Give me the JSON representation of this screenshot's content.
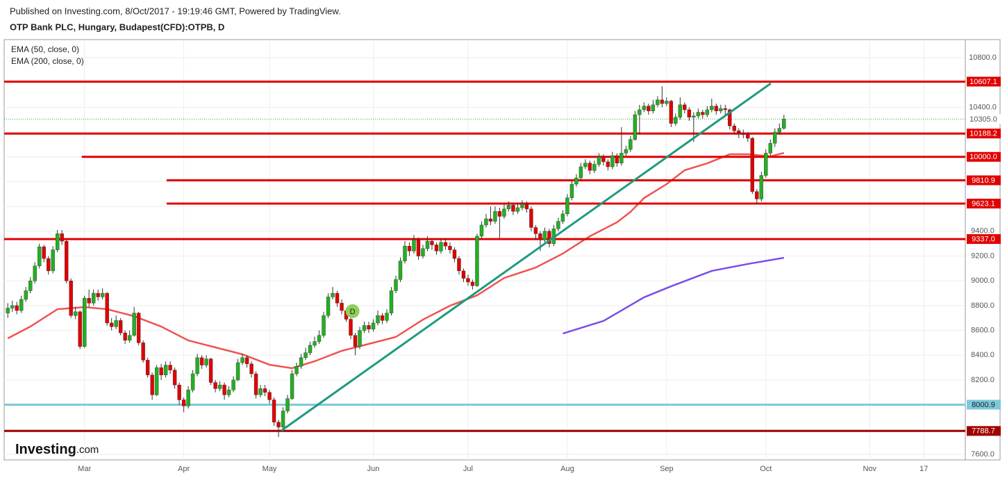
{
  "chart_data": {
    "type": "candlestick",
    "header": "Published on Investing.com, 8/Oct/2017 - 19:19:46 GMT, Powered by TradingView.",
    "title": "OTP Bank PLC, Hungary, Budapest(CFD):OTPB, D",
    "up_color": "#22b022",
    "down_color": "#e00000",
    "open": [
      8740,
      8780,
      8800,
      8760,
      8850,
      8920,
      9000,
      9120,
      9275,
      9180,
      9080,
      9250,
      9380,
      9320,
      9000,
      8720,
      8750,
      8470,
      8860,
      8820,
      8900,
      8870,
      8900,
      8660,
      8630,
      8680,
      8580,
      8520,
      8560,
      8740,
      8500,
      8360,
      8240,
      8080,
      8300,
      8240,
      8320,
      8280,
      8160,
      8040,
      7990,
      8120,
      8250,
      8380,
      8320,
      8370,
      8180,
      8130,
      8160,
      8080,
      8120,
      8200,
      8340,
      8380,
      8330,
      8250,
      8080,
      8130,
      8100,
      8040,
      7860,
      7820,
      7950,
      8050,
      8250,
      8310,
      8380,
      8420,
      8480,
      8510,
      8560,
      8720,
      8870,
      8900,
      8820,
      8760,
      8690,
      8560,
      8470,
      8600,
      8640,
      8610,
      8660,
      8720,
      8680,
      8740,
      8920,
      9010,
      9160,
      9280,
      9240,
      9330,
      9200,
      9260,
      9320,
      9290,
      9240,
      9310,
      9280,
      9250,
      9180,
      9080,
      9020,
      8990,
      8960,
      9360,
      9450,
      9500,
      9480,
      9560,
      9520,
      9580,
      9610,
      9560,
      9590,
      9620,
      9580,
      9430,
      9380,
      9330,
      9400,
      9300,
      9420,
      9480,
      9540,
      9670,
      9780,
      9830,
      9920,
      9950,
      9890,
      9940,
      10000,
      9960,
      9920,
      10010,
      9950,
      10030,
      10060,
      10140,
      10340,
      10380,
      10410,
      10370,
      10420,
      10460,
      10430,
      10450,
      10270,
      10320,
      10420,
      10380,
      10320,
      10330,
      10360,
      10340,
      10380,
      10410,
      10370,
      10390,
      10380,
      10250,
      10210,
      10190,
      10180,
      10150,
      9720,
      9660,
      9850,
      10030,
      10110,
      10200,
      10230
    ],
    "high": [
      8820,
      8840,
      8830,
      8880,
      8950,
      9030,
      9150,
      9300,
      9290,
      9200,
      9280,
      9410,
      9410,
      9330,
      9020,
      8790,
      8760,
      8880,
      8930,
      8930,
      8930,
      8940,
      8910,
      8700,
      8720,
      8700,
      8600,
      8600,
      8790,
      8750,
      8520,
      8380,
      8260,
      8320,
      8330,
      8350,
      8350,
      8300,
      8180,
      8060,
      8150,
      8280,
      8410,
      8400,
      8400,
      8380,
      8200,
      8190,
      8180,
      8150,
      8230,
      8370,
      8410,
      8400,
      8350,
      8270,
      8160,
      8160,
      8120,
      8060,
      7880,
      7980,
      8080,
      8280,
      8340,
      8410,
      8460,
      8510,
      8550,
      8600,
      8750,
      8900,
      8950,
      8920,
      8850,
      8780,
      8700,
      8580,
      8630,
      8670,
      8670,
      8690,
      8760,
      8740,
      8770,
      8950,
      9040,
      9190,
      9320,
      9310,
      9370,
      9350,
      9290,
      9360,
      9340,
      9310,
      9340,
      9340,
      9310,
      9270,
      9200,
      9100,
      9050,
      9010,
      9380,
      9480,
      9540,
      9600,
      9600,
      9590,
      9620,
      9640,
      9630,
      9620,
      9650,
      9640,
      9600,
      9450,
      9400,
      9430,
      9420,
      9450,
      9510,
      9570,
      9700,
      9810,
      9860,
      9950,
      9980,
      9970,
      9970,
      10030,
      10020,
      9980,
      10040,
      10030,
      10240,
      10090,
      10170,
      10370,
      10420,
      10440,
      10430,
      10460,
      10490,
      10570,
      10480,
      10460,
      10350,
      10480,
      10440,
      10400,
      10360,
      10390,
      10380,
      10410,
      10470,
      10430,
      10420,
      10420,
      10390,
      10270,
      10230,
      10220,
      10200,
      10160,
      9740,
      9880,
      10060,
      10140,
      10230,
      10270,
      10340
    ],
    "low": [
      8700,
      8750,
      8730,
      8740,
      8830,
      8900,
      8980,
      9100,
      9150,
      9050,
      9060,
      9230,
      9290,
      8980,
      8700,
      8690,
      8450,
      8460,
      8790,
      8800,
      8840,
      8850,
      8640,
      8600,
      8610,
      8560,
      8490,
      8500,
      8550,
      8480,
      8340,
      8220,
      8040,
      8070,
      8200,
      8220,
      8250,
      8130,
      8000,
      7940,
      7970,
      8100,
      8230,
      8290,
      8300,
      8160,
      8100,
      8110,
      8040,
      8060,
      8100,
      8190,
      8320,
      8300,
      8220,
      8050,
      8060,
      8070,
      8010,
      7830,
      7740,
      7800,
      7930,
      8040,
      8230,
      8290,
      8360,
      8400,
      8460,
      8490,
      8540,
      8700,
      8850,
      8790,
      8730,
      8670,
      8530,
      8400,
      8450,
      8580,
      8580,
      8590,
      8640,
      8650,
      8660,
      8720,
      8900,
      8990,
      9140,
      9200,
      9220,
      9170,
      9180,
      9240,
      9250,
      9210,
      9220,
      9250,
      9220,
      9150,
      9050,
      8990,
      8960,
      8930,
      8950,
      9340,
      9430,
      9450,
      9460,
      9340,
      9500,
      9560,
      9530,
      9540,
      9570,
      9550,
      9400,
      9330,
      9240,
      9310,
      9270,
      9280,
      9400,
      9460,
      9520,
      9650,
      9760,
      9810,
      9900,
      9860,
      9870,
      9920,
      9930,
      9890,
      9900,
      9920,
      9930,
      10010,
      10040,
      10130,
      10180,
      10360,
      10340,
      10350,
      10400,
      10400,
      10410,
      10240,
      10250,
      10300,
      10350,
      10290,
      10120,
      10310,
      10310,
      10320,
      10360,
      10340,
      10350,
      10340,
      10220,
      10180,
      10150,
      10150,
      10120,
      9700,
      9620,
      9640,
      9830,
      10010,
      10080,
      10180,
      10220
    ],
    "close": [
      8780,
      8800,
      8760,
      8850,
      8920,
      9000,
      9120,
      9275,
      9180,
      9080,
      9250,
      9380,
      9320,
      9000,
      8720,
      8750,
      8470,
      8860,
      8820,
      8900,
      8870,
      8900,
      8660,
      8630,
      8680,
      8580,
      8520,
      8560,
      8740,
      8500,
      8360,
      8240,
      8080,
      8300,
      8240,
      8320,
      8280,
      8160,
      8040,
      7990,
      8120,
      8250,
      8380,
      8320,
      8370,
      8180,
      8130,
      8160,
      8080,
      8120,
      8200,
      8340,
      8380,
      8330,
      8250,
      8080,
      8130,
      8100,
      8040,
      7860,
      7820,
      7950,
      8050,
      8250,
      8310,
      8380,
      8420,
      8480,
      8510,
      8560,
      8720,
      8870,
      8900,
      8820,
      8760,
      8690,
      8560,
      8470,
      8600,
      8640,
      8610,
      8660,
      8720,
      8680,
      8740,
      8920,
      9010,
      9160,
      9280,
      9240,
      9330,
      9200,
      9260,
      9320,
      9290,
      9240,
      9310,
      9280,
      9250,
      9180,
      9080,
      9020,
      8990,
      8960,
      9360,
      9450,
      9500,
      9480,
      9560,
      9520,
      9580,
      9610,
      9560,
      9590,
      9620,
      9580,
      9430,
      9380,
      9330,
      9400,
      9300,
      9420,
      9480,
      9540,
      9670,
      9780,
      9830,
      9920,
      9950,
      9890,
      9940,
      10000,
      9960,
      9920,
      10010,
      9950,
      10030,
      10060,
      10140,
      10340,
      10380,
      10410,
      10370,
      10420,
      10460,
      10430,
      10450,
      10270,
      10320,
      10420,
      10380,
      10320,
      10330,
      10360,
      10340,
      10380,
      10410,
      10370,
      10390,
      10380,
      10250,
      10210,
      10190,
      10180,
      10150,
      9720,
      9660,
      9850,
      10030,
      10110,
      10200,
      10230,
      10305
    ],
    "series": [
      {
        "name": "EMA (50, close, 0)",
        "color": "#ef5350",
        "x": [
          0,
          5,
          11,
          17,
          22,
          28,
          34,
          40,
          46,
          52,
          58,
          63,
          68,
          74,
          80,
          86,
          92,
          98,
          104,
          110,
          117,
          123,
          129,
          135,
          138,
          141,
          146,
          150,
          155,
          160,
          164,
          169,
          172
        ],
        "values": [
          8536,
          8631,
          8771,
          8788,
          8771,
          8715,
          8631,
          8519,
          8463,
          8407,
          8323,
          8295,
          8351,
          8435,
          8491,
          8547,
          8687,
          8799,
          8883,
          9023,
          9107,
          9220,
          9360,
          9472,
          9556,
          9668,
          9780,
          9892,
          9948,
          10021,
          10021,
          10004,
          10032
        ]
      },
      {
        "name": "EMA (200, close, 0)",
        "color": "#7b4ee6",
        "x": [
          123,
          132,
          141,
          147,
          156,
          164,
          172
        ],
        "values": [
          8575,
          8676,
          8867,
          8956,
          9080,
          9136,
          9186
        ]
      }
    ],
    "xlim": [
      -0.8,
      212.2
    ],
    "xticks": [
      {
        "value": 17,
        "label": "Mar"
      },
      {
        "value": 39,
        "label": "Apr"
      },
      {
        "value": 58,
        "label": "May"
      },
      {
        "value": 81,
        "label": "Jun"
      },
      {
        "value": 102,
        "label": "Jul"
      },
      {
        "value": 124,
        "label": "Aug"
      },
      {
        "value": 146,
        "label": "Sep"
      },
      {
        "value": 168,
        "label": "Oct"
      },
      {
        "value": 191,
        "label": "Nov"
      },
      {
        "value": 203,
        "label": "17"
      }
    ],
    "ylim": [
      7555,
      10946
    ],
    "yticks": [
      {
        "value": 7600,
        "label": "7600.0"
      },
      {
        "value": 7800,
        "label": "7800.0"
      },
      {
        "value": 8000,
        "label": "8000.0"
      },
      {
        "value": 8200,
        "label": "8200.0"
      },
      {
        "value": 8400,
        "label": "8400.0"
      },
      {
        "value": 8600,
        "label": "8600.0"
      },
      {
        "value": 8800,
        "label": "8800.0"
      },
      {
        "value": 9000,
        "label": "9000.0"
      },
      {
        "value": 9200,
        "label": "9200.0"
      },
      {
        "value": 9400,
        "label": "9400.0"
      },
      {
        "value": 9600,
        "label": "9600.0"
      },
      {
        "value": 9800,
        "label": "9800.0"
      },
      {
        "value": 10000,
        "label": "10000.0"
      },
      {
        "value": 10200,
        "label": "10200.0"
      },
      {
        "value": 10400,
        "label": "10400.0"
      },
      {
        "value": 10600,
        "label": "10600.0"
      },
      {
        "value": 10800,
        "label": "10800.0"
      }
    ],
    "grid": true,
    "lines": [
      {
        "value": 10607.1,
        "label": "10607.1",
        "color": "#e00000"
      },
      {
        "value": 10188.2,
        "label": "10188.2",
        "color": "#e00000"
      },
      {
        "value": 10000,
        "label": "10000.0",
        "color": "#e00000",
        "x_start": 16.4
      },
      {
        "value": 9810.9,
        "label": "9810.9",
        "color": "#e00000",
        "x_start": 35.2
      },
      {
        "value": 9623.1,
        "label": "9623.1",
        "color": "#e00000",
        "x_start": 35.2
      },
      {
        "value": 9337,
        "label": "9337.0",
        "color": "#e00000"
      },
      {
        "value": 8000.9,
        "label": "8000.9",
        "color": "#7ec8d8"
      },
      {
        "value": 7788.7,
        "label": "7788.7",
        "color": "#a00000"
      }
    ],
    "last_price": {
      "value": 10305,
      "label": "10305.0",
      "color": "#22b022"
    },
    "trendline": {
      "x": [
        60.6,
        169.1
      ],
      "values": [
        7791,
        10593
      ],
      "color": "#1e9a80"
    },
    "marker": {
      "x": 76.4,
      "value": 8755,
      "label": "D",
      "color": "#8ed05a"
    },
    "logo": {
      "brand": "Investing",
      "suffix": ".com"
    }
  }
}
